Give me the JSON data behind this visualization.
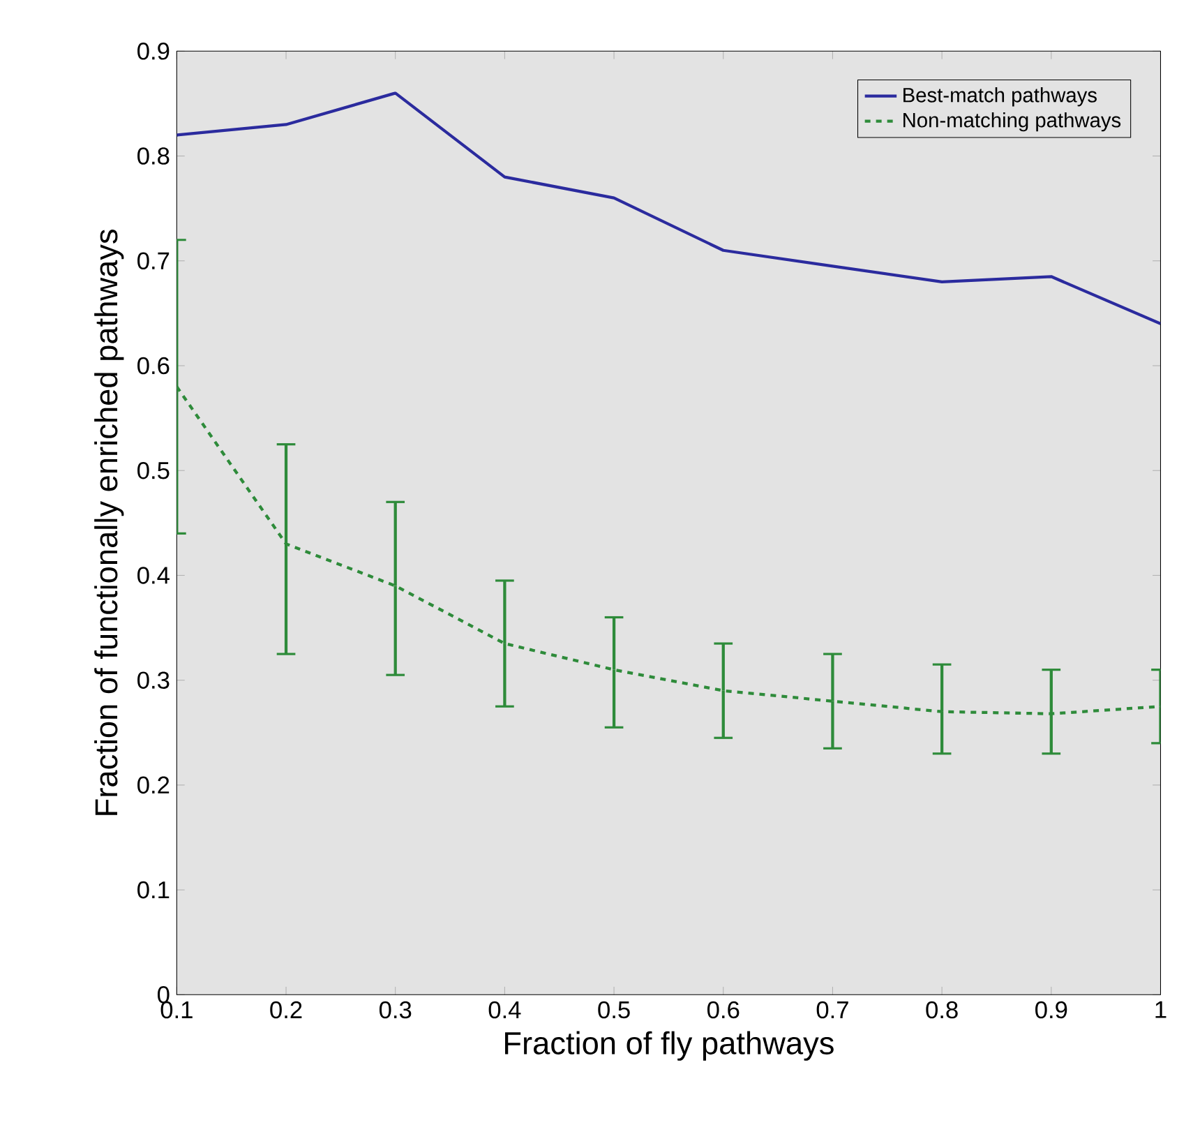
{
  "chart_data": {
    "type": "line",
    "xlabel": "Fraction of fly pathways",
    "ylabel": "Fraction of functionally enriched pathways",
    "x": [
      0.1,
      0.2,
      0.3,
      0.4,
      0.5,
      0.6,
      0.7,
      0.8,
      0.9,
      1
    ],
    "series": [
      {
        "name": "Best-match pathways",
        "color": "#2b2b9e",
        "line_style": "solid",
        "values": [
          0.82,
          0.83,
          0.86,
          0.78,
          0.76,
          0.71,
          0.695,
          0.68,
          0.685,
          0.64
        ]
      },
      {
        "name": "Non-matching pathways",
        "color": "#2e8b3a",
        "line_style": "dashed",
        "values": [
          0.58,
          0.43,
          0.39,
          0.335,
          0.31,
          0.29,
          0.28,
          0.27,
          0.268,
          0.275
        ],
        "errors": [
          [
            0.44,
            0.72
          ],
          [
            0.325,
            0.525
          ],
          [
            0.305,
            0.47
          ],
          [
            0.275,
            0.395
          ],
          [
            0.255,
            0.36
          ],
          [
            0.245,
            0.335
          ],
          [
            0.235,
            0.325
          ],
          [
            0.23,
            0.315
          ],
          [
            0.23,
            0.31
          ],
          [
            0.24,
            0.31
          ]
        ]
      }
    ],
    "xlim": [
      0.1,
      1
    ],
    "ylim": [
      0,
      0.9
    ],
    "xticks": [
      0.1,
      0.2,
      0.3,
      0.4,
      0.5,
      0.6,
      0.7,
      0.8,
      0.9,
      1
    ],
    "yticks": [
      0,
      0.1,
      0.2,
      0.3,
      0.4,
      0.5,
      0.6,
      0.7,
      0.8,
      0.9
    ],
    "grid": false,
    "legend": "top right",
    "marker": "none"
  }
}
